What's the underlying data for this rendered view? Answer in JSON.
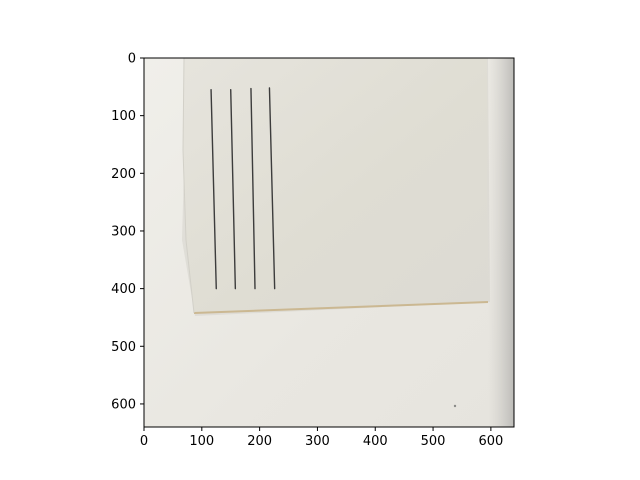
{
  "figure": {
    "xlim": [
      0,
      640
    ],
    "ylim": [
      640,
      0
    ],
    "x_ticks": [
      0,
      100,
      200,
      300,
      400,
      500,
      600
    ],
    "y_ticks": [
      0,
      100,
      200,
      300,
      400,
      500,
      600
    ],
    "x_tick_labels": [
      "0",
      "100",
      "200",
      "300",
      "400",
      "500",
      "600"
    ],
    "y_tick_labels": [
      "0",
      "100",
      "200",
      "300",
      "400",
      "500",
      "600"
    ]
  },
  "photo": {
    "subject": "folded sheet of paper with four vertical pencil lines",
    "background_color": "#ebe9e3",
    "paper_color": "#e3e1d9",
    "line_color": "#3c3c3c",
    "pencil_lines": [
      {
        "x_top": 116,
        "y_top": 55,
        "x_bottom": 125,
        "y_bottom": 400
      },
      {
        "x_top": 150,
        "y_top": 55,
        "x_bottom": 158,
        "y_bottom": 400
      },
      {
        "x_top": 185,
        "y_top": 53,
        "x_bottom": 192,
        "y_bottom": 400
      },
      {
        "x_top": 217,
        "y_top": 52,
        "x_bottom": 226,
        "y_bottom": 400
      }
    ]
  }
}
